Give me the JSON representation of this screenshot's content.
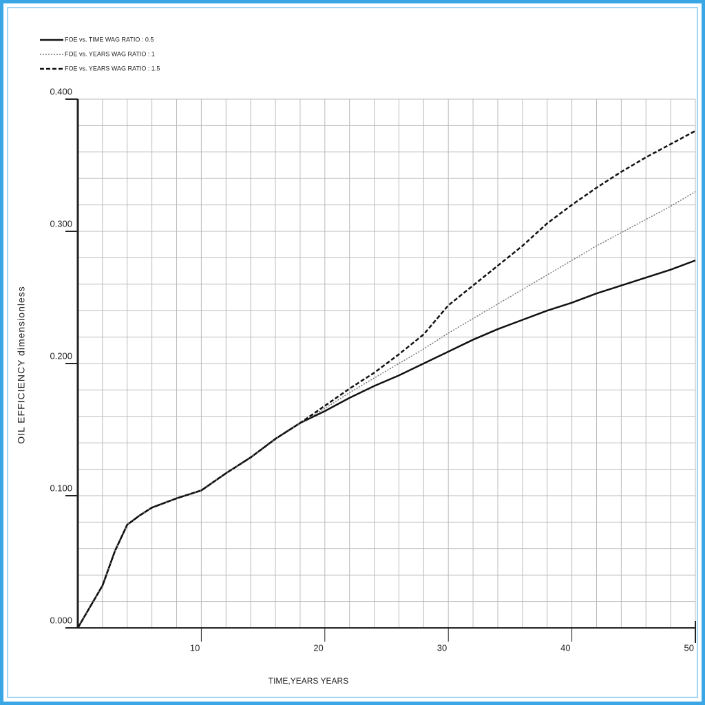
{
  "chart_data": {
    "type": "line",
    "y_label": "OIL EFFICIENCY   dimensionless",
    "x_label": "TIME,YEARS   YEARS",
    "x": [
      0,
      1,
      2,
      3,
      4,
      5,
      6,
      8,
      10,
      12,
      14,
      16,
      18,
      20,
      22,
      24,
      26,
      28,
      30,
      32,
      34,
      36,
      38,
      40,
      42,
      44,
      46,
      48,
      50
    ],
    "series": [
      {
        "name": "FOE vs. TIME   WAG RATIO : 0.5",
        "color": "#111111",
        "dash": "solid",
        "values": [
          0,
          0.016,
          0.032,
          0.058,
          0.078,
          0.085,
          0.091,
          0.098,
          0.104,
          0.117,
          0.129,
          0.143,
          0.155,
          0.164,
          0.174,
          0.183,
          0.191,
          0.2,
          0.209,
          0.218,
          0.226,
          0.233,
          0.24,
          0.246,
          0.253,
          0.259,
          0.265,
          0.271,
          0.278
        ]
      },
      {
        "name": "FOE vs. YEARS  WAG RATIO : 1",
        "color": "#777777",
        "dash": "dotted",
        "values": [
          0,
          0.016,
          0.032,
          0.058,
          0.078,
          0.085,
          0.091,
          0.098,
          0.104,
          0.117,
          0.129,
          0.143,
          0.155,
          0.166,
          0.178,
          0.189,
          0.2,
          0.211,
          0.223,
          0.234,
          0.245,
          0.256,
          0.267,
          0.278,
          0.289,
          0.299,
          0.309,
          0.319,
          0.33
        ]
      },
      {
        "name": "FOE vs. YEARS  WAG RATIO : 1.5",
        "color": "#111111",
        "dash": "dashed",
        "values": [
          0,
          0.016,
          0.032,
          0.058,
          0.078,
          0.085,
          0.091,
          0.098,
          0.104,
          0.117,
          0.129,
          0.143,
          0.155,
          0.168,
          0.181,
          0.193,
          0.207,
          0.222,
          0.244,
          0.259,
          0.274,
          0.289,
          0.306,
          0.32,
          0.333,
          0.345,
          0.356,
          0.366,
          0.376
        ]
      }
    ],
    "xlim": [
      0,
      50
    ],
    "xticks": [
      10,
      20,
      30,
      40,
      50
    ],
    "ylim": [
      0,
      0.4
    ],
    "yticks": [
      {
        "value": 0,
        "label": "0.000"
      },
      {
        "value": 0.1,
        "label": "0.100"
      },
      {
        "value": 0.2,
        "label": "0.200"
      },
      {
        "value": 0.3,
        "label": "0.300"
      },
      {
        "value": 0.4,
        "label": "0.400"
      }
    ],
    "xgrid": [
      2,
      4,
      6,
      8,
      10,
      12,
      14,
      16,
      18,
      20,
      22,
      24,
      26,
      28,
      30,
      32,
      34,
      36,
      38,
      40,
      42,
      44,
      46,
      48,
      50
    ],
    "ygrid": [
      0.02,
      0.04,
      0.06,
      0.08,
      0.1,
      0.12,
      0.14,
      0.16,
      0.18,
      0.2,
      0.22,
      0.24,
      0.26,
      0.28,
      0.3,
      0.32,
      0.34,
      0.36,
      0.38,
      0.4
    ],
    "grid": true,
    "legend": "top-left"
  }
}
